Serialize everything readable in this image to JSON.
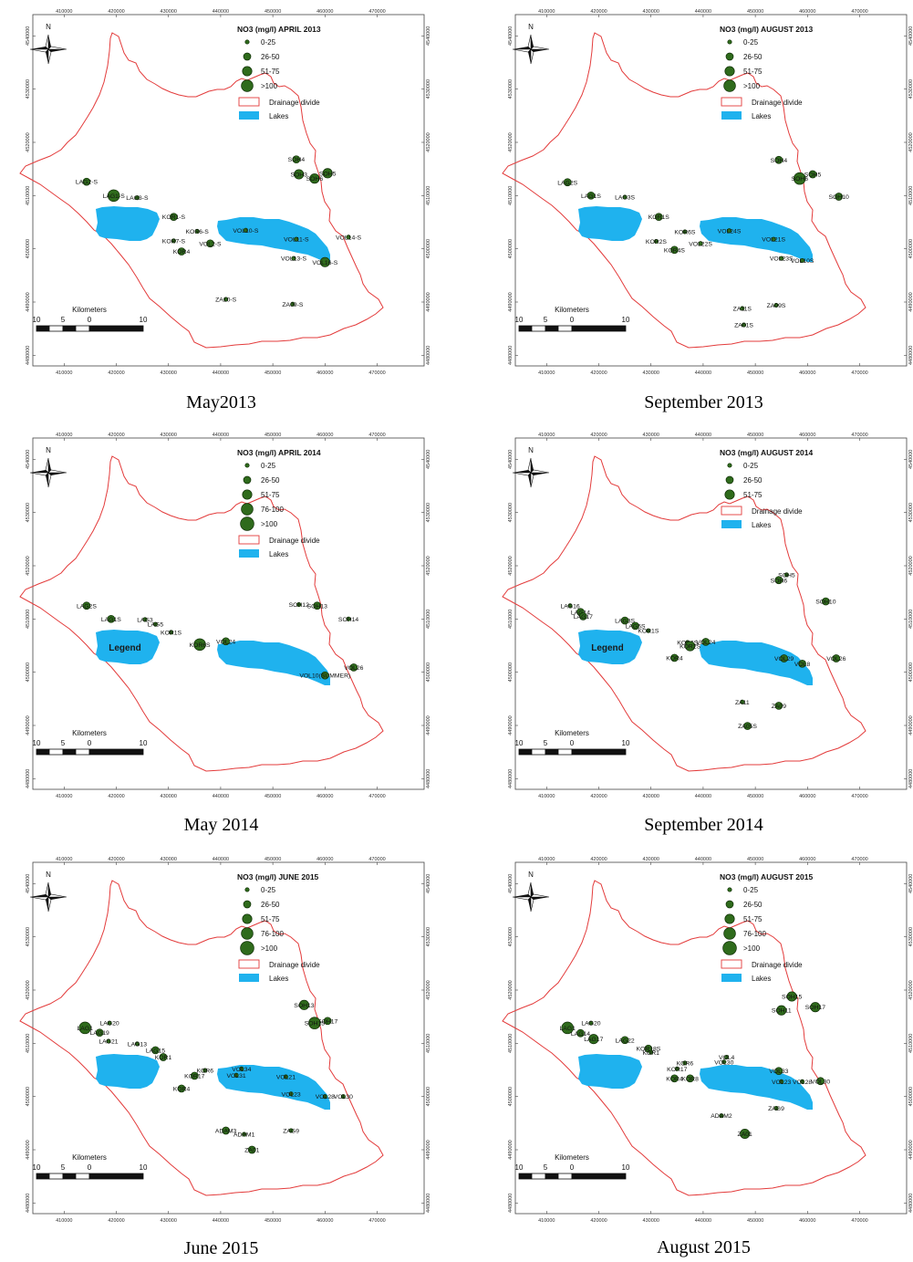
{
  "map_frame": {
    "x_ticks": [
      "410000",
      "420000",
      "430000",
      "440000",
      "450000",
      "460000",
      "470000"
    ],
    "y_ticks": [
      "4540000",
      "4530000",
      "4520000",
      "4510000",
      "4500000",
      "4490000",
      "4480000"
    ]
  },
  "north_label": "N",
  "scalebar": {
    "title": "Kilometers",
    "labels": [
      "10",
      "5",
      "0",
      "10"
    ]
  },
  "colors": {
    "boundary": "#e33b3b",
    "lake": "#1fb2ee",
    "dot": "#2f6b1c",
    "dot_stroke": "#0f2e06"
  },
  "panels": [
    {
      "caption": "May2013",
      "title": "NO3 (mg/l) APRIL 2013",
      "legend_classes": [
        "0-25",
        "26-50",
        "51-75",
        ">100"
      ],
      "legend_extra": [
        "Drainage divide",
        "Lakes"
      ],
      "overlay_label": "",
      "stations": [
        {
          "label": "LAG2-S",
          "x": 414300,
          "y": 4512600,
          "cls": 2
        },
        {
          "label": "LAG1-S",
          "x": 419500,
          "y": 4510000,
          "cls": 4
        },
        {
          "label": "LAG3-S",
          "x": 424000,
          "y": 4509600,
          "cls": 1
        },
        {
          "label": "KOR1-S",
          "x": 431000,
          "y": 4506000,
          "cls": 2
        },
        {
          "label": "KOR6-S",
          "x": 435500,
          "y": 4503300,
          "cls": 1
        },
        {
          "label": "KOR7-S",
          "x": 431000,
          "y": 4501500,
          "cls": 1
        },
        {
          "label": "KOR4",
          "x": 432500,
          "y": 4499500,
          "cls": 2
        },
        {
          "label": "VOL2-S",
          "x": 438000,
          "y": 4501000,
          "cls": 2
        },
        {
          "label": "VOL10-S",
          "x": 444800,
          "y": 4503500,
          "cls": 1
        },
        {
          "label": "VOL11-S",
          "x": 454500,
          "y": 4501800,
          "cls": 1
        },
        {
          "label": "VOL14-S",
          "x": 464500,
          "y": 4502200,
          "cls": 1
        },
        {
          "label": "VOL13-S",
          "x": 454000,
          "y": 4498200,
          "cls": 1
        },
        {
          "label": "VOL16-S",
          "x": 460000,
          "y": 4497500,
          "cls": 3
        },
        {
          "label": "SOH4",
          "x": 454500,
          "y": 4516800,
          "cls": 2
        },
        {
          "label": "SOH3",
          "x": 455000,
          "y": 4514000,
          "cls": 3
        },
        {
          "label": "SOH5",
          "x": 460500,
          "y": 4514200,
          "cls": 3
        },
        {
          "label": "SOH6",
          "x": 458000,
          "y": 4513200,
          "cls": 3
        },
        {
          "label": "ZA10-S",
          "x": 441000,
          "y": 4490500,
          "cls": 1
        },
        {
          "label": "ZA09-S",
          "x": 453800,
          "y": 4489600,
          "cls": 1
        }
      ]
    },
    {
      "caption": "September 2013",
      "title": "NO3 (mg/l) AUGUST 2013",
      "legend_classes": [
        "0-25",
        "26-50",
        "51-75",
        ">100"
      ],
      "legend_extra": [
        "Drainage divide",
        "Lakes"
      ],
      "overlay_label": "",
      "stations": [
        {
          "label": "LAG2S",
          "x": 414000,
          "y": 4512500,
          "cls": 2
        },
        {
          "label": "LAG1S",
          "x": 418500,
          "y": 4510000,
          "cls": 2
        },
        {
          "label": "LAG3S",
          "x": 425000,
          "y": 4509700,
          "cls": 1
        },
        {
          "label": "KOR1S",
          "x": 431500,
          "y": 4506000,
          "cls": 2
        },
        {
          "label": "KOR6S",
          "x": 436500,
          "y": 4503200,
          "cls": 1
        },
        {
          "label": "KOR2S",
          "x": 431000,
          "y": 4501400,
          "cls": 1
        },
        {
          "label": "KOR4S",
          "x": 434500,
          "y": 4499800,
          "cls": 2
        },
        {
          "label": "VOL22S",
          "x": 439500,
          "y": 4501000,
          "cls": 1
        },
        {
          "label": "VOL24S",
          "x": 445000,
          "y": 4503400,
          "cls": 1
        },
        {
          "label": "VOL21S",
          "x": 453500,
          "y": 4501800,
          "cls": 1
        },
        {
          "label": "VOL23S",
          "x": 455000,
          "y": 4498200,
          "cls": 1
        },
        {
          "label": "VOL10S",
          "x": 459000,
          "y": 4497800,
          "cls": 1
        },
        {
          "label": "SOH4",
          "x": 454500,
          "y": 4516700,
          "cls": 2
        },
        {
          "label": "SOH5",
          "x": 461000,
          "y": 4514000,
          "cls": 2
        },
        {
          "label": "SOH6",
          "x": 458500,
          "y": 4513200,
          "cls": 4
        },
        {
          "label": "SOH10",
          "x": 466000,
          "y": 4509800,
          "cls": 2
        },
        {
          "label": "ZA11S",
          "x": 447500,
          "y": 4488800,
          "cls": 1
        },
        {
          "label": "ZA09S",
          "x": 454000,
          "y": 4489400,
          "cls": 1
        },
        {
          "label": "ZA01S",
          "x": 447800,
          "y": 4485700,
          "cls": 1
        }
      ]
    },
    {
      "caption": "May 2014",
      "title": "NO3 (mg/l) APRIL 2014",
      "legend_classes": [
        "0-25",
        "26-50",
        "51-75",
        "76-100",
        ">100"
      ],
      "legend_extra": [
        "Drainage divide",
        "Lakes"
      ],
      "overlay_label": "Legend",
      "stations": [
        {
          "label": "LAG2S",
          "x": 414300,
          "y": 4512500,
          "cls": 2
        },
        {
          "label": "LAG1S",
          "x": 419000,
          "y": 4510000,
          "cls": 2
        },
        {
          "label": "LAG3",
          "x": 425500,
          "y": 4509900,
          "cls": 1
        },
        {
          "label": "LAG5",
          "x": 427500,
          "y": 4509000,
          "cls": 1
        },
        {
          "label": "KOR1S",
          "x": 430500,
          "y": 4507500,
          "cls": 1
        },
        {
          "label": "KOR6S",
          "x": 436000,
          "y": 4505200,
          "cls": 4
        },
        {
          "label": "VOL24",
          "x": 441000,
          "y": 4505800,
          "cls": 2
        },
        {
          "label": "VOL10(SUMMER)",
          "x": 460000,
          "y": 4499400,
          "cls": 2
        },
        {
          "label": "VOL26",
          "x": 465500,
          "y": 4500900,
          "cls": 2
        },
        {
          "label": "SOH12",
          "x": 455000,
          "y": 4512700,
          "cls": 1
        },
        {
          "label": "SOH13",
          "x": 458500,
          "y": 4512500,
          "cls": 2
        },
        {
          "label": "SOH14",
          "x": 464500,
          "y": 4510000,
          "cls": 1
        }
      ]
    },
    {
      "caption": "September 2014",
      "title": "NO3 (mg/l) AUGUST 2014",
      "legend_classes": [
        "0-25",
        "26-50",
        "51-75"
      ],
      "legend_extra": [
        "Drainage divide",
        "Lakes"
      ],
      "overlay_label": "Legend",
      "stations": [
        {
          "label": "LAG16",
          "x": 414500,
          "y": 4512500,
          "cls": 1
        },
        {
          "label": "LAG14",
          "x": 416500,
          "y": 4511300,
          "cls": 2
        },
        {
          "label": "LAG17",
          "x": 417000,
          "y": 4510500,
          "cls": 2
        },
        {
          "label": "LAG3S",
          "x": 425000,
          "y": 4509700,
          "cls": 2
        },
        {
          "label": "LAG5S",
          "x": 427000,
          "y": 4508700,
          "cls": 2
        },
        {
          "label": "KOR1S",
          "x": 429500,
          "y": 4507800,
          "cls": 1
        },
        {
          "label": "KOR6S",
          "x": 437000,
          "y": 4505600,
          "cls": 1
        },
        {
          "label": "KOR2S",
          "x": 437500,
          "y": 4504900,
          "cls": 3
        },
        {
          "label": "VOL24",
          "x": 440500,
          "y": 4505700,
          "cls": 2
        },
        {
          "label": "KOR4",
          "x": 434500,
          "y": 4502700,
          "cls": 2
        },
        {
          "label": "VOL29",
          "x": 455500,
          "y": 4502600,
          "cls": 2
        },
        {
          "label": "VOL8",
          "x": 459000,
          "y": 4501600,
          "cls": 2
        },
        {
          "label": "VOL26",
          "x": 465500,
          "y": 4502600,
          "cls": 2
        },
        {
          "label": "SOH5",
          "x": 456000,
          "y": 4518300,
          "cls": 1
        },
        {
          "label": "SOH6",
          "x": 454500,
          "y": 4517300,
          "cls": 2
        },
        {
          "label": "SOH10",
          "x": 463500,
          "y": 4513300,
          "cls": 2
        },
        {
          "label": "ZA11",
          "x": 447500,
          "y": 4494400,
          "cls": 1
        },
        {
          "label": "ZA09",
          "x": 454500,
          "y": 4493700,
          "cls": 2
        },
        {
          "label": "ZA05S",
          "x": 448500,
          "y": 4489900,
          "cls": 2
        }
      ]
    },
    {
      "caption": "June 2015",
      "title": "NO3 (mg/l) JUNE 2015",
      "legend_classes": [
        "0-25",
        "26-50",
        "51-75",
        "76-100",
        ">100"
      ],
      "legend_extra": [
        "Drainage divide",
        "Lakes"
      ],
      "overlay_label": "",
      "stations": [
        {
          "label": "LAG1",
          "x": 414000,
          "y": 4512900,
          "cls": 4
        },
        {
          "label": "LAG20",
          "x": 418700,
          "y": 4513800,
          "cls": 1
        },
        {
          "label": "LAG19",
          "x": 416800,
          "y": 4512000,
          "cls": 2
        },
        {
          "label": "LAG21",
          "x": 418500,
          "y": 4510400,
          "cls": 1
        },
        {
          "label": "LAG13",
          "x": 424000,
          "y": 4509900,
          "cls": 1
        },
        {
          "label": "LAG15",
          "x": 427500,
          "y": 4508700,
          "cls": 2
        },
        {
          "label": "KOR1",
          "x": 429000,
          "y": 4507400,
          "cls": 2
        },
        {
          "label": "KOR6",
          "x": 437000,
          "y": 4504900,
          "cls": 1
        },
        {
          "label": "KOR17",
          "x": 435000,
          "y": 4503900,
          "cls": 2
        },
        {
          "label": "KOR4",
          "x": 432500,
          "y": 4501500,
          "cls": 2
        },
        {
          "label": "VOL34",
          "x": 444000,
          "y": 4505200,
          "cls": 1
        },
        {
          "label": "VOL31",
          "x": 443000,
          "y": 4504000,
          "cls": 1
        },
        {
          "label": "VOL21",
          "x": 452500,
          "y": 4503700,
          "cls": 1
        },
        {
          "label": "VOL23",
          "x": 453500,
          "y": 4500500,
          "cls": 1
        },
        {
          "label": "VOL28",
          "x": 460000,
          "y": 4500000,
          "cls": 1
        },
        {
          "label": "VOL30",
          "x": 463500,
          "y": 4500000,
          "cls": 1
        },
        {
          "label": "SOH13",
          "x": 456000,
          "y": 4517200,
          "cls": 3
        },
        {
          "label": "SOH17",
          "x": 460500,
          "y": 4514200,
          "cls": 2
        },
        {
          "label": "SOH15",
          "x": 458000,
          "y": 4513800,
          "cls": 4
        },
        {
          "label": "ADAM3",
          "x": 441000,
          "y": 4493600,
          "cls": 2
        },
        {
          "label": "ADAM1",
          "x": 444500,
          "y": 4492900,
          "cls": 1
        },
        {
          "label": "ZAG9",
          "x": 453500,
          "y": 4493600,
          "cls": 1
        },
        {
          "label": "ZA01",
          "x": 446000,
          "y": 4490000,
          "cls": 2
        }
      ]
    },
    {
      "caption": "August 2015",
      "title": "NO3 (mg/l) AUGUST 2015",
      "legend_classes": [
        "0-25",
        "26-50",
        "51-75",
        "76-100",
        ">100"
      ],
      "legend_extra": [
        "Drainage divide",
        "Lakes"
      ],
      "overlay_label": "",
      "stations": [
        {
          "label": "LAG1",
          "x": 414000,
          "y": 4512900,
          "cls": 4
        },
        {
          "label": "LAG20",
          "x": 418500,
          "y": 4513800,
          "cls": 1
        },
        {
          "label": "LAG14",
          "x": 416500,
          "y": 4511900,
          "cls": 2
        },
        {
          "label": "LAG17",
          "x": 419000,
          "y": 4510800,
          "cls": 3
        },
        {
          "label": "LAG22",
          "x": 425000,
          "y": 4510600,
          "cls": 2
        },
        {
          "label": "KOR18S",
          "x": 429500,
          "y": 4509000,
          "cls": 2
        },
        {
          "label": "KOR1",
          "x": 430000,
          "y": 4508300,
          "cls": 1
        },
        {
          "label": "KOR6",
          "x": 436500,
          "y": 4506300,
          "cls": 1
        },
        {
          "label": "KOR17",
          "x": 435000,
          "y": 4505200,
          "cls": 1
        },
        {
          "label": "KOR4",
          "x": 434500,
          "y": 4503400,
          "cls": 2
        },
        {
          "label": "KOR8",
          "x": 437500,
          "y": 4503400,
          "cls": 2
        },
        {
          "label": "VOL4",
          "x": 444500,
          "y": 4507400,
          "cls": 1
        },
        {
          "label": "VOL30",
          "x": 444000,
          "y": 4506500,
          "cls": 1
        },
        {
          "label": "VOL33",
          "x": 454500,
          "y": 4504800,
          "cls": 2
        },
        {
          "label": "VOL23",
          "x": 455000,
          "y": 4502800,
          "cls": 1
        },
        {
          "label": "VOL28",
          "x": 459000,
          "y": 4502800,
          "cls": 1
        },
        {
          "label": "VOL30",
          "x": 462500,
          "y": 4502900,
          "cls": 2
        },
        {
          "label": "SOH15",
          "x": 457000,
          "y": 4518800,
          "cls": 3
        },
        {
          "label": "SOH11",
          "x": 455000,
          "y": 4516200,
          "cls": 3
        },
        {
          "label": "SOH17",
          "x": 461500,
          "y": 4516800,
          "cls": 3
        },
        {
          "label": "ADAM2",
          "x": 443500,
          "y": 4496400,
          "cls": 1
        },
        {
          "label": "ZAG9",
          "x": 454000,
          "y": 4497800,
          "cls": 1
        },
        {
          "label": "ZA01",
          "x": 448000,
          "y": 4493000,
          "cls": 3
        }
      ]
    }
  ]
}
